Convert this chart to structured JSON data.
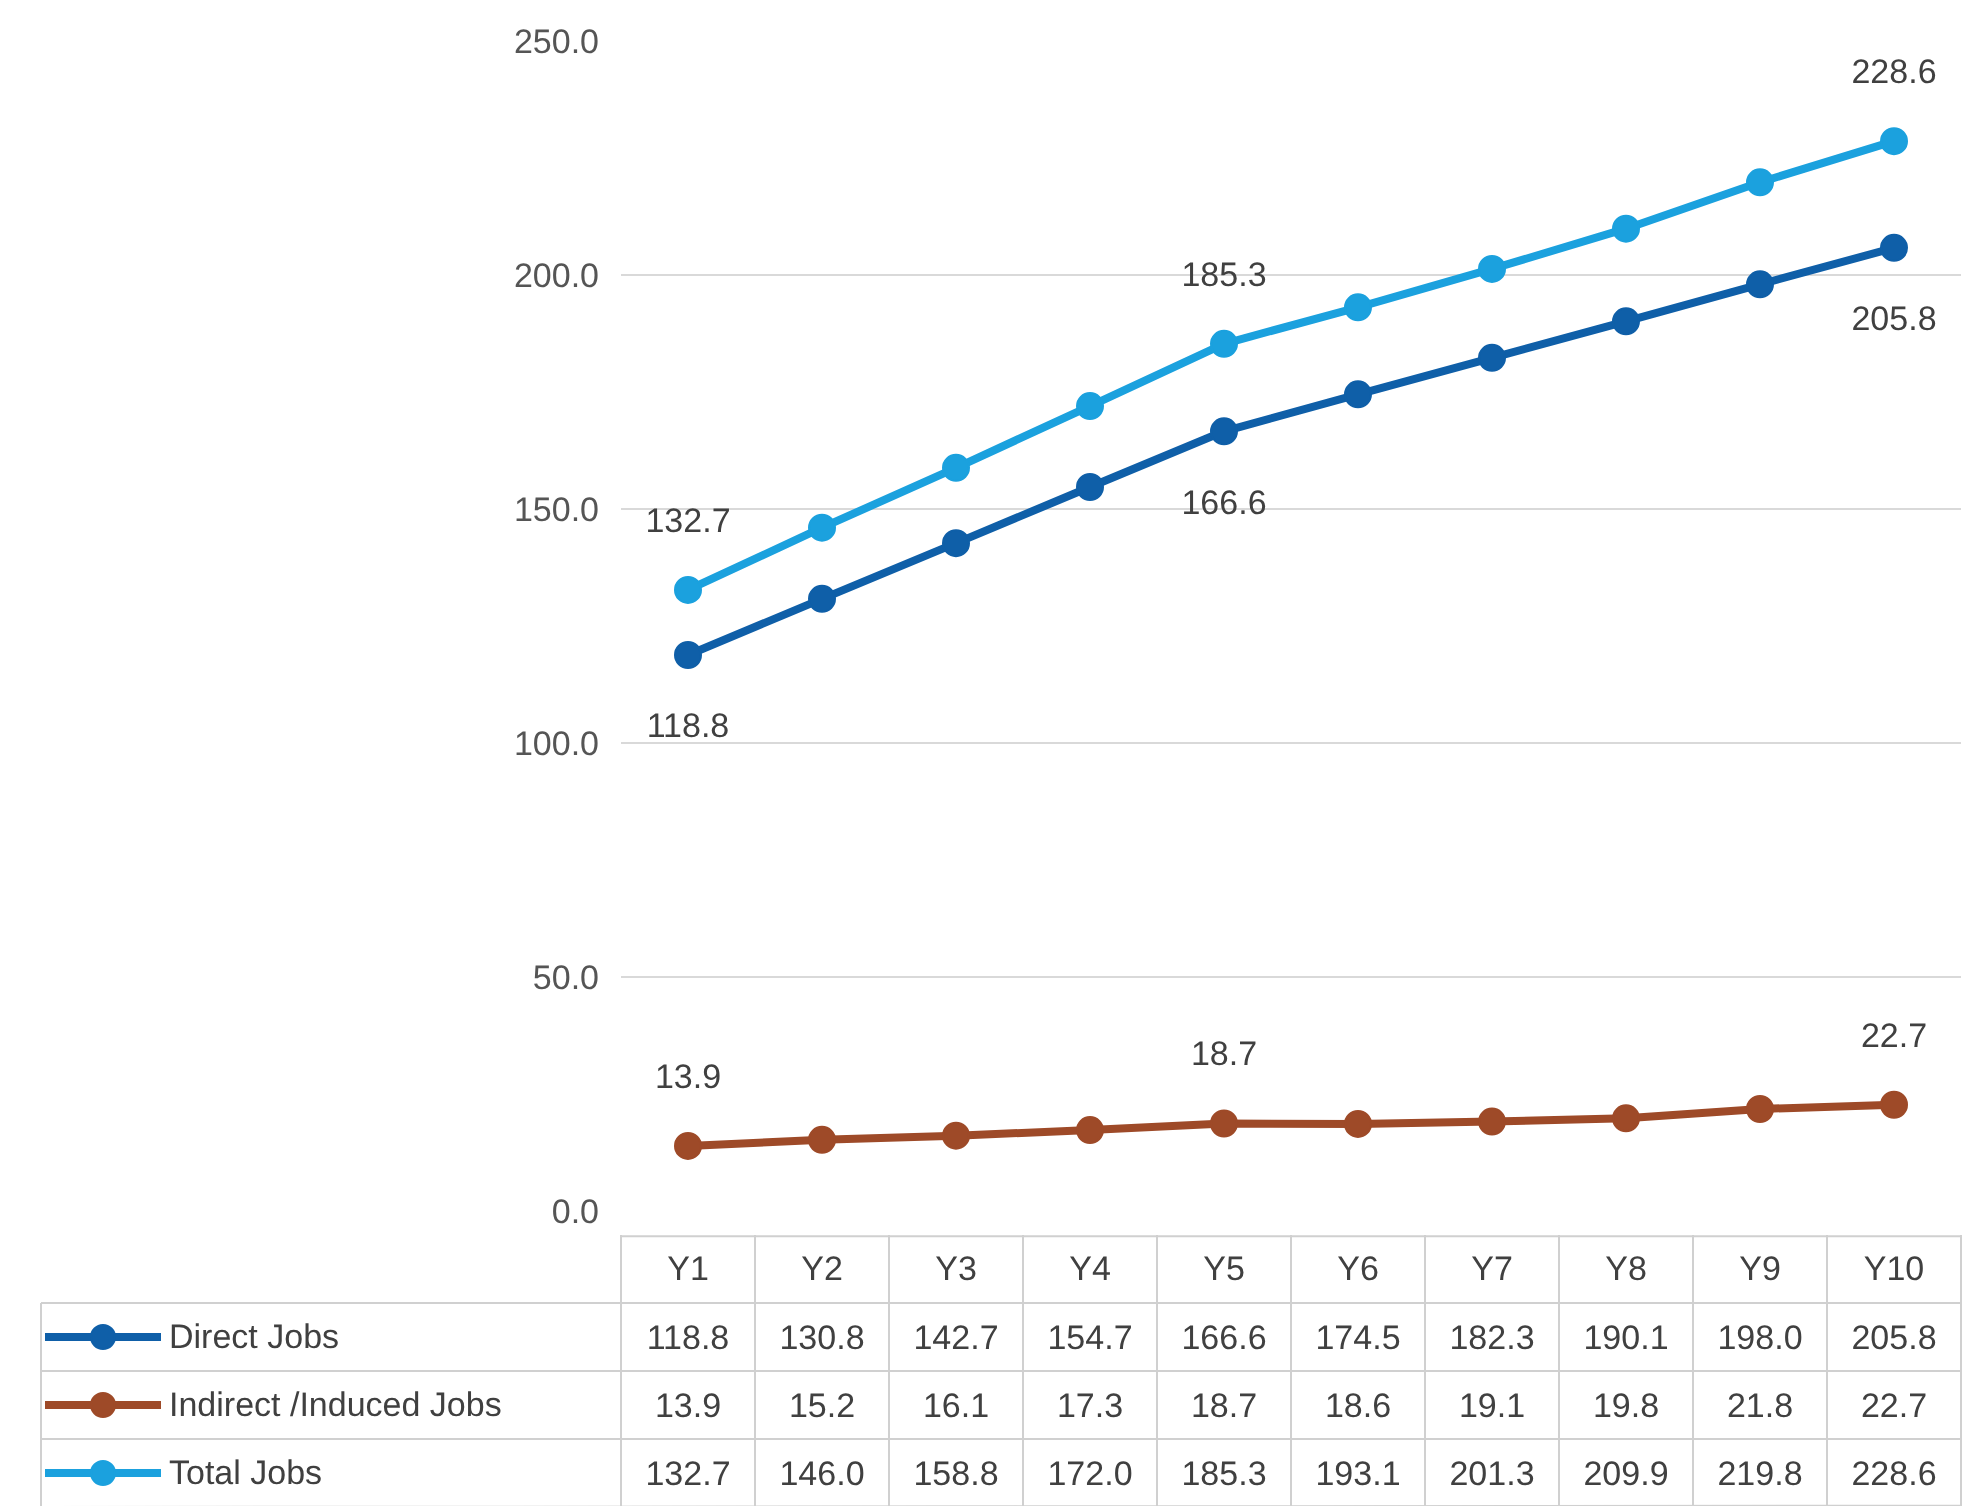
{
  "chart_data": {
    "type": "line",
    "categories": [
      "Y1",
      "Y2",
      "Y3",
      "Y4",
      "Y5",
      "Y6",
      "Y7",
      "Y8",
      "Y9",
      "Y10"
    ],
    "series": [
      {
        "name": "Direct Jobs",
        "color": "#0f5fa8",
        "values": [
          118.8,
          130.8,
          142.7,
          154.7,
          166.6,
          174.5,
          182.3,
          190.1,
          198.0,
          205.8
        ],
        "value_labels": [
          "118.8",
          "130.8",
          "142.7",
          "154.7",
          "166.6",
          "174.5",
          "182.3",
          "190.1",
          "198.0",
          "205.8"
        ]
      },
      {
        "name": "Indirect /Induced Jobs",
        "color": "#9e4a28",
        "values": [
          13.9,
          15.2,
          16.1,
          17.3,
          18.7,
          18.6,
          19.1,
          19.8,
          21.8,
          22.7
        ],
        "value_labels": [
          "13.9",
          "15.2",
          "16.1",
          "17.3",
          "18.7",
          "18.6",
          "19.1",
          "19.8",
          "21.8",
          "22.7"
        ]
      },
      {
        "name": "Total Jobs",
        "color": "#1ba1de",
        "values": [
          132.7,
          146.0,
          158.8,
          172.0,
          185.3,
          193.1,
          201.3,
          209.9,
          219.8,
          228.6
        ],
        "value_labels": [
          "132.7",
          "146.0",
          "158.8",
          "172.0",
          "185.3",
          "193.1",
          "201.3",
          "209.9",
          "219.8",
          "228.6"
        ]
      }
    ],
    "annotations": [
      {
        "text": "118.8",
        "x": "Y1",
        "y": 118.8
      },
      {
        "text": "166.6",
        "x": "Y5",
        "y": 166.6
      },
      {
        "text": "205.8",
        "x": "Y10",
        "y": 205.8
      },
      {
        "text": "13.9",
        "x": "Y1",
        "y": 13.9
      },
      {
        "text": "18.7",
        "x": "Y5",
        "y": 18.7
      },
      {
        "text": "22.7",
        "x": "Y10",
        "y": 22.7
      },
      {
        "text": "132.7",
        "x": "Y1",
        "y": 132.7
      },
      {
        "text": "185.3",
        "x": "Y5",
        "y": 185.3
      },
      {
        "text": "228.6",
        "x": "Y10",
        "y": 228.6
      }
    ],
    "ylim": [
      0,
      250
    ],
    "yticks": [
      {
        "value": 0,
        "label": "0.0"
      },
      {
        "value": 50,
        "label": "50.0"
      },
      {
        "value": 100,
        "label": "100.0"
      },
      {
        "value": 150,
        "label": "150.0"
      },
      {
        "value": 200,
        "label": "200.0"
      },
      {
        "value": 250,
        "label": "250.0"
      }
    ],
    "grid": "y",
    "marker": "circle",
    "line_style": "solid",
    "legend": "bottom left"
  }
}
